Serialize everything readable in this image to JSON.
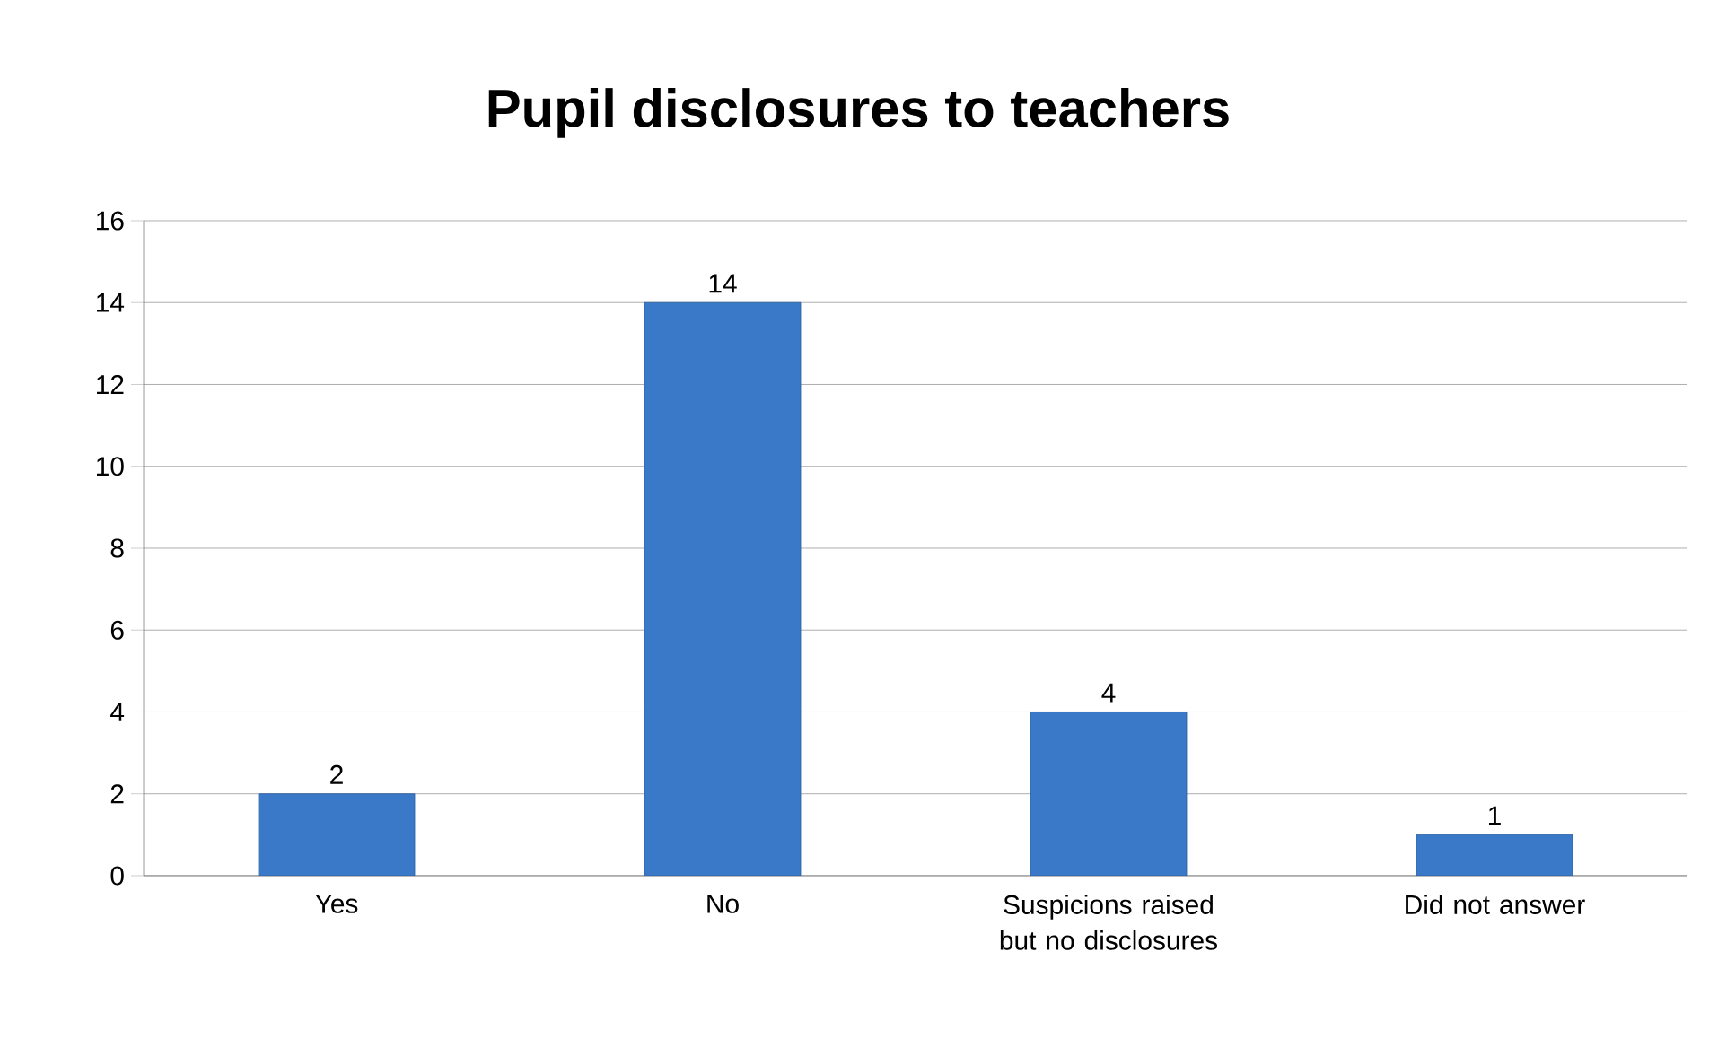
{
  "chart_data": {
    "type": "bar",
    "title": "Pupil disclosures to teachers",
    "categories": [
      "Yes",
      "No",
      "Suspicions raised but no disclosures",
      "Did not answer"
    ],
    "values": [
      2,
      14,
      4,
      1
    ],
    "color": "#3a78c8",
    "ylim": [
      0,
      16
    ],
    "yticks": [
      0,
      2,
      4,
      6,
      8,
      10,
      12,
      14,
      16
    ],
    "grid": "y",
    "data_labels": true
  }
}
